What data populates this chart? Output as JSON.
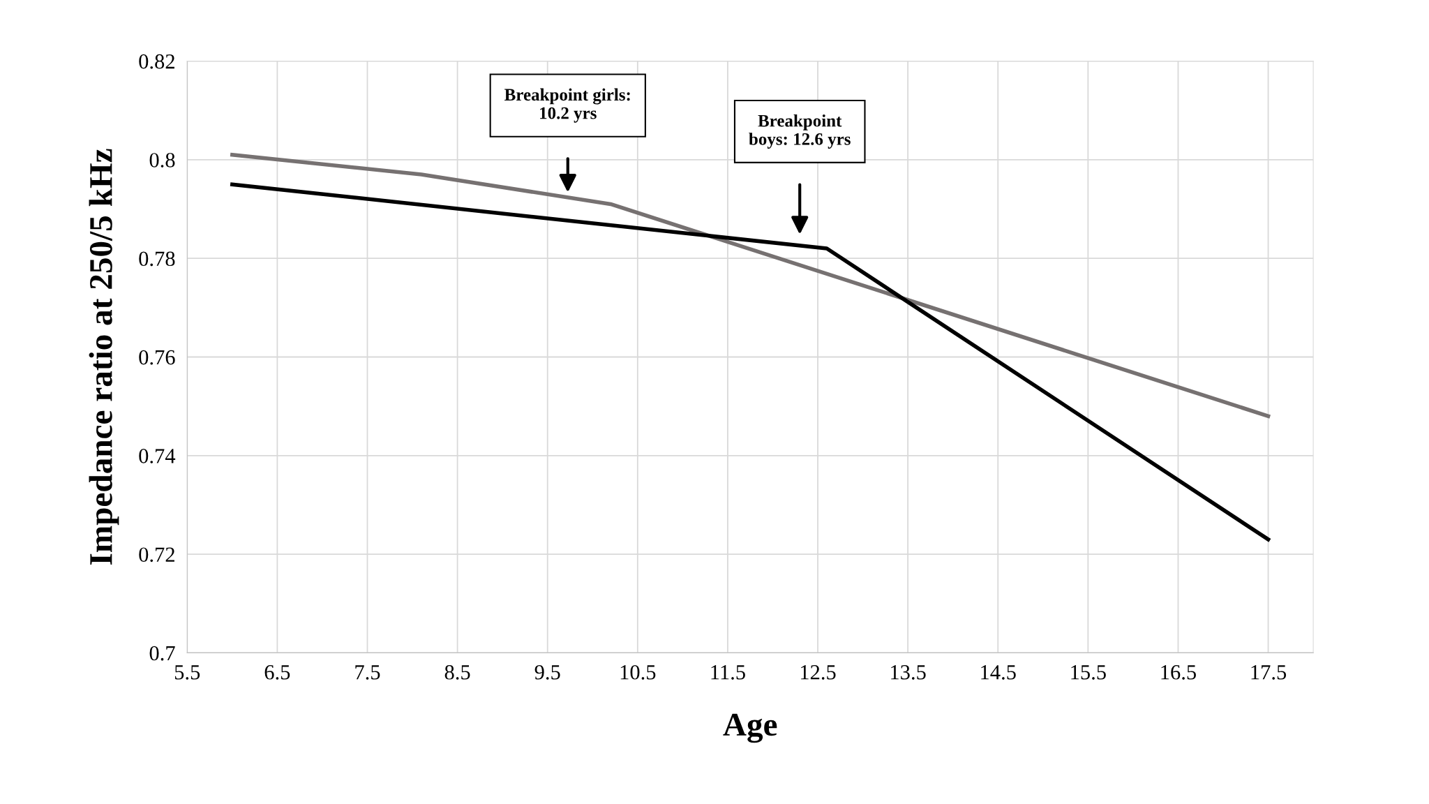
{
  "chart_data": {
    "type": "line",
    "xlabel": "Age",
    "ylabel": "Impedance ratio at 250/5 kHz",
    "series": [
      {
        "color": "#767171",
        "x": [
          6,
          8.1,
          10.2,
          17.5
        ],
        "values": [
          0.801,
          0.797,
          0.791,
          0.748
        ]
      },
      {
        "color": "#000000",
        "x": [
          6,
          12.6,
          17.5
        ],
        "values": [
          0.795,
          0.782,
          0.723
        ]
      }
    ],
    "xlim": [
      5.5,
      18
    ],
    "xticks": [
      5.5,
      6.5,
      7.5,
      8.5,
      9.5,
      10.5,
      11.5,
      12.5,
      13.5,
      14.5,
      15.5,
      16.5,
      17.5
    ],
    "ylim": [
      0.7,
      0.82
    ],
    "yticks": [
      0.7,
      0.72,
      0.74,
      0.76,
      0.78,
      0.8,
      0.82
    ],
    "grid": true,
    "marker": "none",
    "line_style": "solid",
    "annotations": [
      "Breakpoint girls:\n10.2 yrs",
      "Breakpoint\nboys: 12.6 yrs"
    ]
  }
}
